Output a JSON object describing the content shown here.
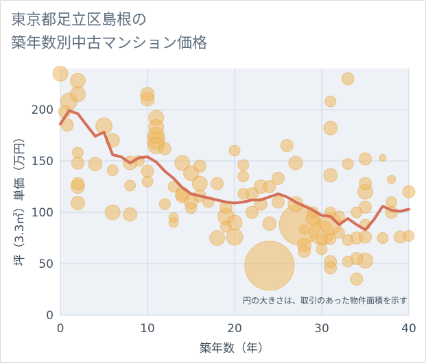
{
  "title_lines": [
    "東京都足立区島根の",
    "築年数別中古マンション価格"
  ],
  "note": "円の大きさは、取引のあった物件面積を示す",
  "colors": {
    "bubble_fill": "#f0b85e",
    "bubble_stroke": "#e0a548",
    "line": "#d4705a",
    "plot_bg": "#eef2f6",
    "grid": "#c9d7e4"
  },
  "chart_data": {
    "type": "scatter",
    "xlabel": "築年数（年）",
    "ylabel": "坪（3.3㎡）単価（万円）",
    "xlim": [
      0,
      40
    ],
    "ylim": [
      0,
      240
    ],
    "xticks": [
      0,
      10,
      20,
      30,
      40
    ],
    "yticks": [
      0,
      50,
      100,
      150,
      200
    ],
    "grid": true,
    "series": [
      {
        "kind": "bubble",
        "points": [
          {
            "x": 0,
            "y": 235,
            "s": 11
          },
          {
            "x": 1,
            "y": 208,
            "s": 12
          },
          {
            "x": 0.5,
            "y": 198,
            "s": 9
          },
          {
            "x": 0.8,
            "y": 185,
            "s": 9
          },
          {
            "x": 2,
            "y": 228,
            "s": 11
          },
          {
            "x": 2,
            "y": 215,
            "s": 11
          },
          {
            "x": 2,
            "y": 158,
            "s": 8
          },
          {
            "x": 2,
            "y": 148,
            "s": 9
          },
          {
            "x": 2,
            "y": 128,
            "s": 9
          },
          {
            "x": 2,
            "y": 125,
            "s": 10
          },
          {
            "x": 2,
            "y": 109,
            "s": 10
          },
          {
            "x": 5,
            "y": 184,
            "s": 12
          },
          {
            "x": 4,
            "y": 147,
            "s": 10
          },
          {
            "x": 6,
            "y": 170,
            "s": 10
          },
          {
            "x": 6,
            "y": 141,
            "s": 8
          },
          {
            "x": 6,
            "y": 100,
            "s": 11
          },
          {
            "x": 8,
            "y": 148,
            "s": 10
          },
          {
            "x": 8,
            "y": 126,
            "s": 8
          },
          {
            "x": 8,
            "y": 98,
            "s": 10
          },
          {
            "x": 9,
            "y": 150,
            "s": 8
          },
          {
            "x": 10,
            "y": 215,
            "s": 10
          },
          {
            "x": 10,
            "y": 210,
            "s": 10
          },
          {
            "x": 10,
            "y": 140,
            "s": 9
          },
          {
            "x": 10,
            "y": 130,
            "s": 8
          },
          {
            "x": 11,
            "y": 192,
            "s": 11
          },
          {
            "x": 11,
            "y": 183,
            "s": 11
          },
          {
            "x": 11,
            "y": 175,
            "s": 12
          },
          {
            "x": 11,
            "y": 170,
            "s": 13
          },
          {
            "x": 11,
            "y": 165,
            "s": 12
          },
          {
            "x": 12,
            "y": 162,
            "s": 9
          },
          {
            "x": 12,
            "y": 108,
            "s": 8
          },
          {
            "x": 13,
            "y": 125,
            "s": 8
          },
          {
            "x": 13,
            "y": 95,
            "s": 7
          },
          {
            "x": 13,
            "y": 90,
            "s": 7
          },
          {
            "x": 14,
            "y": 148,
            "s": 11
          },
          {
            "x": 14,
            "y": 118,
            "s": 10
          },
          {
            "x": 14,
            "y": 116,
            "s": 10
          },
          {
            "x": 15,
            "y": 138,
            "s": 11
          },
          {
            "x": 15,
            "y": 110,
            "s": 10
          },
          {
            "x": 15,
            "y": 104,
            "s": 8
          },
          {
            "x": 16,
            "y": 145,
            "s": 9
          },
          {
            "x": 16,
            "y": 128,
            "s": 11
          },
          {
            "x": 16,
            "y": 116,
            "s": 9
          },
          {
            "x": 17,
            "y": 110,
            "s": 8
          },
          {
            "x": 18,
            "y": 128,
            "s": 9
          },
          {
            "x": 18,
            "y": 75,
            "s": 11
          },
          {
            "x": 19,
            "y": 105,
            "s": 9
          },
          {
            "x": 19,
            "y": 96,
            "s": 12
          },
          {
            "x": 19,
            "y": 86,
            "s": 8
          },
          {
            "x": 20,
            "y": 76,
            "s": 12
          },
          {
            "x": 20,
            "y": 90,
            "s": 11
          },
          {
            "x": 20,
            "y": 160,
            "s": 8
          },
          {
            "x": 21,
            "y": 146,
            "s": 8
          },
          {
            "x": 21,
            "y": 135,
            "s": 8
          },
          {
            "x": 21,
            "y": 118,
            "s": 8
          },
          {
            "x": 22,
            "y": 118,
            "s": 9
          },
          {
            "x": 22,
            "y": 100,
            "s": 9
          },
          {
            "x": 23,
            "y": 125,
            "s": 10
          },
          {
            "x": 23,
            "y": 108,
            "s": 9
          },
          {
            "x": 24,
            "y": 48,
            "s": 36
          },
          {
            "x": 24,
            "y": 125,
            "s": 9
          },
          {
            "x": 24,
            "y": 89,
            "s": 10
          },
          {
            "x": 25,
            "y": 133,
            "s": 9
          },
          {
            "x": 25,
            "y": 110,
            "s": 9
          },
          {
            "x": 26,
            "y": 165,
            "s": 9
          },
          {
            "x": 27,
            "y": 148,
            "s": 10
          },
          {
            "x": 27,
            "y": 108,
            "s": 11
          },
          {
            "x": 27.5,
            "y": 88,
            "s": 30
          },
          {
            "x": 28,
            "y": 68,
            "s": 10
          },
          {
            "x": 28,
            "y": 62,
            "s": 9
          },
          {
            "x": 28,
            "y": 83,
            "s": 7
          },
          {
            "x": 29,
            "y": 100,
            "s": 8
          },
          {
            "x": 29,
            "y": 94,
            "s": 10
          },
          {
            "x": 30,
            "y": 80,
            "s": 18
          },
          {
            "x": 30,
            "y": 74,
            "s": 8
          },
          {
            "x": 30,
            "y": 64,
            "s": 8
          },
          {
            "x": 31,
            "y": 208,
            "s": 8
          },
          {
            "x": 31,
            "y": 182,
            "s": 10
          },
          {
            "x": 31,
            "y": 136,
            "s": 10
          },
          {
            "x": 31,
            "y": 100,
            "s": 8
          },
          {
            "x": 31,
            "y": 89,
            "s": 16
          },
          {
            "x": 31,
            "y": 74,
            "s": 8
          },
          {
            "x": 31,
            "y": 52,
            "s": 9
          },
          {
            "x": 31,
            "y": 46,
            "s": 9
          },
          {
            "x": 32,
            "y": 96,
            "s": 8
          },
          {
            "x": 32,
            "y": 80,
            "s": 8
          },
          {
            "x": 33,
            "y": 230,
            "s": 9
          },
          {
            "x": 33,
            "y": 147,
            "s": 8
          },
          {
            "x": 33,
            "y": 73,
            "s": 8
          },
          {
            "x": 33,
            "y": 52,
            "s": 8
          },
          {
            "x": 34,
            "y": 100,
            "s": 8
          },
          {
            "x": 34,
            "y": 75,
            "s": 9
          },
          {
            "x": 34,
            "y": 55,
            "s": 9
          },
          {
            "x": 34,
            "y": 35,
            "s": 9
          },
          {
            "x": 35,
            "y": 152,
            "s": 9
          },
          {
            "x": 35,
            "y": 128,
            "s": 9
          },
          {
            "x": 35,
            "y": 120,
            "s": 11
          },
          {
            "x": 35,
            "y": 105,
            "s": 9
          },
          {
            "x": 35,
            "y": 88,
            "s": 8
          },
          {
            "x": 35,
            "y": 76,
            "s": 9
          },
          {
            "x": 35,
            "y": 53,
            "s": 11
          },
          {
            "x": 37,
            "y": 153,
            "s": 5
          },
          {
            "x": 37,
            "y": 75,
            "s": 8
          },
          {
            "x": 38,
            "y": 132,
            "s": 6
          },
          {
            "x": 38,
            "y": 110,
            "s": 8
          },
          {
            "x": 38,
            "y": 100,
            "s": 9
          },
          {
            "x": 39,
            "y": 76,
            "s": 9
          },
          {
            "x": 40,
            "y": 120,
            "s": 9
          },
          {
            "x": 40,
            "y": 77,
            "s": 8
          }
        ]
      },
      {
        "kind": "line",
        "x": [
          0,
          1,
          2,
          3,
          4,
          5,
          6,
          7,
          8,
          9,
          10,
          11,
          12,
          13,
          14,
          15,
          16,
          17,
          18,
          19,
          20,
          21,
          22,
          23,
          24,
          25,
          26,
          27,
          28,
          29,
          30,
          31,
          32,
          33,
          34,
          35,
          36,
          37,
          38,
          39,
          40
        ],
        "y": [
          186,
          199,
          196,
          185,
          174,
          178,
          156,
          154,
          148,
          153,
          154,
          149,
          140,
          133,
          124,
          118,
          116,
          114,
          112,
          110,
          109,
          110,
          112,
          112,
          115,
          118,
          115,
          110,
          106,
          102,
          97,
          96,
          88,
          94,
          88,
          83,
          93,
          106,
          102,
          101,
          103
        ]
      }
    ]
  }
}
